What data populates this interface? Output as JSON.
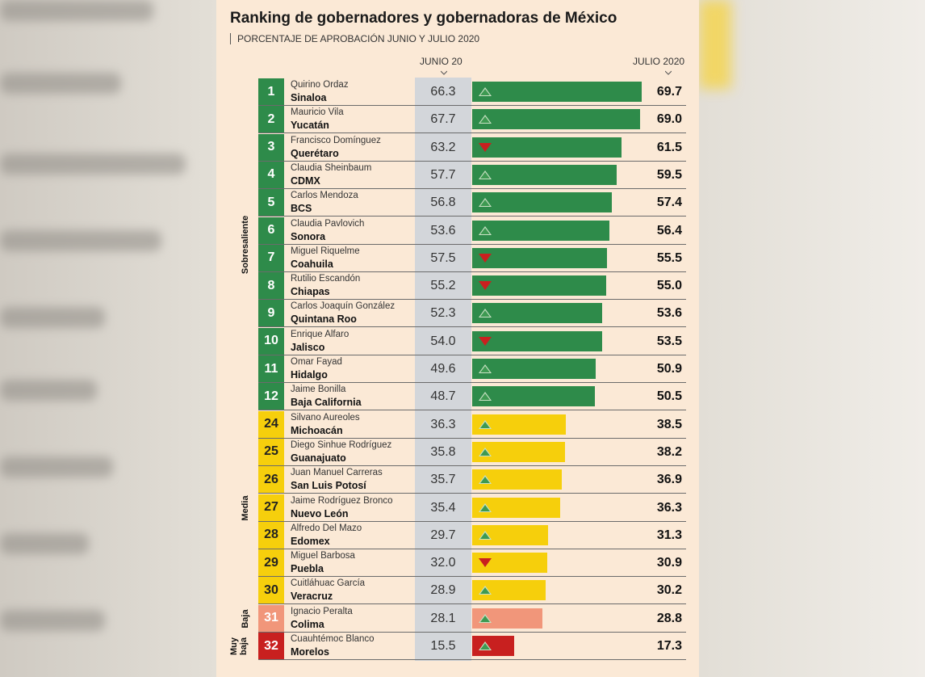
{
  "title": "Ranking de gobernadores y gobernadoras de México",
  "subtitle": "PORCENTAJE DE APROBACIÓN JUNIO Y JULIO 2020",
  "colors": {
    "Sobresaliente": "#2e8b4a",
    "Media": "#f6cf0c",
    "Baja": "#f1967a",
    "Muy baja": "#c8201f",
    "up": "#3e9a52",
    "down": "#c9201f"
  },
  "chart_data": {
    "type": "bar",
    "columns": [
      "JUNIO 20",
      "JULIO 2020"
    ],
    "xlim": [
      0,
      69.7
    ],
    "groups": [
      {
        "label": "Sobresaliente",
        "from": 0,
        "to": 11
      },
      {
        "label": "Media",
        "from": 12,
        "to": 18
      },
      {
        "label": "Baja",
        "from": 19,
        "to": 19
      },
      {
        "label": "Muy baja",
        "from": 20,
        "to": 20
      }
    ],
    "rows": [
      {
        "rank": "1",
        "governor": "Quirino Ordaz",
        "state": "Sinaloa",
        "june": 66.3,
        "july": 69.7,
        "trend": "up",
        "group": "Sobresaliente"
      },
      {
        "rank": "2",
        "governor": "Mauricio Vila",
        "state": "Yucatán",
        "june": 67.7,
        "july": 69.0,
        "trend": "up",
        "group": "Sobresaliente"
      },
      {
        "rank": "3",
        "governor": "Francisco Domínguez",
        "state": "Querétaro",
        "june": 63.2,
        "july": 61.5,
        "trend": "down",
        "group": "Sobresaliente"
      },
      {
        "rank": "4",
        "governor": "Claudia Sheinbaum",
        "state": "CDMX",
        "june": 57.7,
        "july": 59.5,
        "trend": "up",
        "group": "Sobresaliente"
      },
      {
        "rank": "5",
        "governor": "Carlos Mendoza",
        "state": "BCS",
        "june": 56.8,
        "july": 57.4,
        "trend": "up",
        "group": "Sobresaliente"
      },
      {
        "rank": "6",
        "governor": "Claudia Pavlovich",
        "state": "Sonora",
        "june": 53.6,
        "july": 56.4,
        "trend": "up",
        "group": "Sobresaliente"
      },
      {
        "rank": "7",
        "governor": "Miguel Riquelme",
        "state": "Coahuila",
        "june": 57.5,
        "july": 55.5,
        "trend": "down",
        "group": "Sobresaliente"
      },
      {
        "rank": "8",
        "governor": "Rutilio Escandón",
        "state": "Chiapas",
        "june": 55.2,
        "july": 55.0,
        "trend": "down",
        "group": "Sobresaliente"
      },
      {
        "rank": "9",
        "governor": "Carlos Joaquín González",
        "state": "Quintana Roo",
        "june": 52.3,
        "july": 53.6,
        "trend": "up",
        "group": "Sobresaliente"
      },
      {
        "rank": "10",
        "governor": "Enrique Alfaro",
        "state": "Jalisco",
        "june": 54.0,
        "july": 53.5,
        "trend": "down",
        "group": "Sobresaliente"
      },
      {
        "rank": "11",
        "governor": "Omar Fayad",
        "state": "Hidalgo",
        "june": 49.6,
        "july": 50.9,
        "trend": "up",
        "group": "Sobresaliente"
      },
      {
        "rank": "12",
        "governor": "Jaime Bonilla",
        "state": "Baja California",
        "june": 48.7,
        "july": 50.5,
        "trend": "up",
        "group": "Sobresaliente"
      },
      {
        "rank": "24",
        "governor": "Silvano Aureoles",
        "state": "Michoacán",
        "june": 36.3,
        "july": 38.5,
        "trend": "up",
        "group": "Media"
      },
      {
        "rank": "25",
        "governor": "Diego Sinhue Rodríguez",
        "state": "Guanajuato",
        "june": 35.8,
        "july": 38.2,
        "trend": "up",
        "group": "Media"
      },
      {
        "rank": "26",
        "governor": "Juan Manuel Carreras",
        "state": "San Luis Potosí",
        "june": 35.7,
        "july": 36.9,
        "trend": "up",
        "group": "Media"
      },
      {
        "rank": "27",
        "governor": "Jaime Rodríguez Bronco",
        "state": "Nuevo León",
        "june": 35.4,
        "july": 36.3,
        "trend": "up",
        "group": "Media"
      },
      {
        "rank": "28",
        "governor": "Alfredo Del Mazo",
        "state": "Edomex",
        "june": 29.7,
        "july": 31.3,
        "trend": "up",
        "group": "Media"
      },
      {
        "rank": "29",
        "governor": "Miguel Barbosa",
        "state": "Puebla",
        "june": 32.0,
        "july": 30.9,
        "trend": "down",
        "group": "Media"
      },
      {
        "rank": "30",
        "governor": "Cuitláhuac García",
        "state": "Veracruz",
        "june": 28.9,
        "july": 30.2,
        "trend": "up",
        "group": "Media"
      },
      {
        "rank": "31",
        "governor": "Ignacio Peralta",
        "state": "Colima",
        "june": 28.1,
        "july": 28.8,
        "trend": "up",
        "group": "Baja"
      },
      {
        "rank": "32",
        "governor": "Cuauhtémoc Blanco",
        "state": "Morelos",
        "june": 15.5,
        "july": 17.3,
        "trend": "up",
        "group": "Muy baja"
      }
    ]
  }
}
